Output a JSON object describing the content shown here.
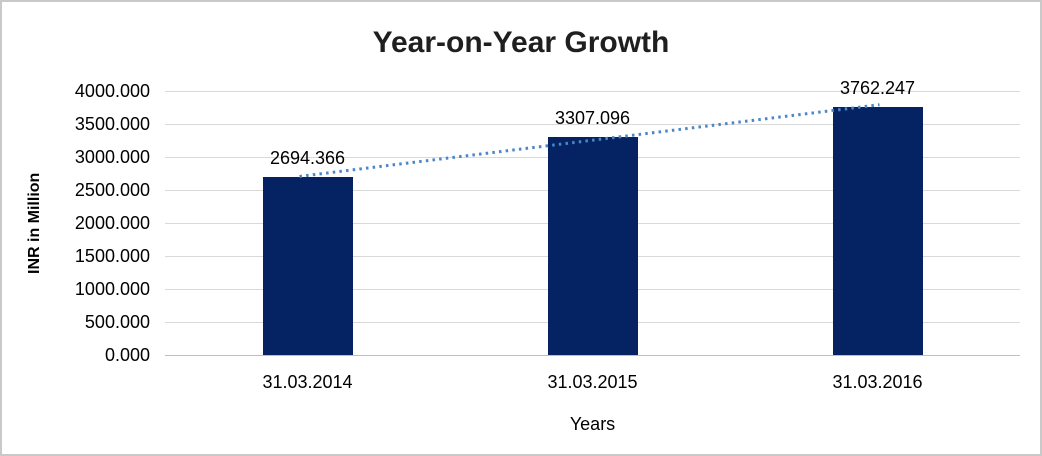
{
  "chart_data": {
    "type": "bar",
    "title": "Year-on-Year Growth",
    "xlabel": "Years",
    "ylabel": "INR in Million",
    "categories": [
      "31.03.2014",
      "31.03.2015",
      "31.03.2016"
    ],
    "values": [
      2694.366,
      3307.096,
      3762.247
    ],
    "data_labels": [
      "2694.366",
      "3307.096",
      "3762.247"
    ],
    "ylim": [
      0,
      4000
    ],
    "ytick_step": 500,
    "ytick_labels": [
      "4000.000",
      "3500.000",
      "3000.000",
      "2500.000",
      "2000.000",
      "1500.000",
      "1000.000",
      "500.000",
      "0.000"
    ],
    "grid": "horizontal-gridlines-on",
    "legend": "none",
    "trendline": {
      "type": "linear",
      "style": "dotted"
    },
    "colors": {
      "bar": "#052363",
      "trendline": "#4a86c8",
      "gridline": "#d9d9d9",
      "axis_line": "#bfbfbf",
      "text": "#000000",
      "title_text": "#1f1f1f",
      "frame_border": "#c9c9c9",
      "background": "#ffffff"
    }
  }
}
